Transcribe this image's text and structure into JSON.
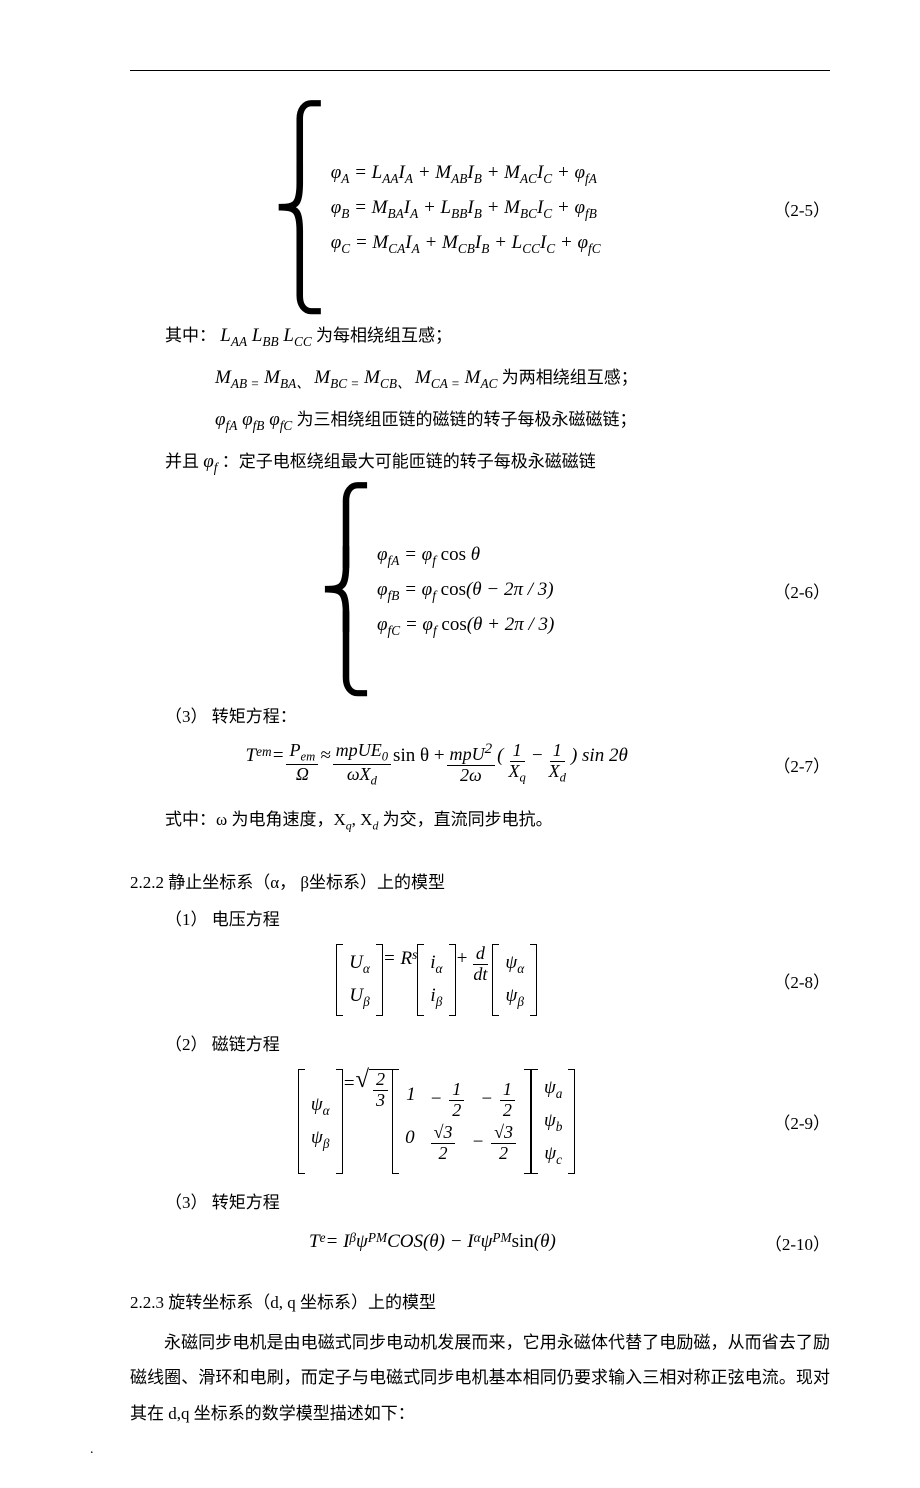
{
  "page": {
    "top_rule": true,
    "footer_mark": "."
  },
  "eq_2_5": {
    "num": "（2-5）",
    "lines": [
      "φ<sub>A</sub> = L<sub>AA</sub>I<sub>A</sub> + M<sub>AB</sub>I<sub>B</sub> + M<sub>AC</sub>I<sub>C</sub> + φ<sub>fA</sub>",
      "φ<sub>B</sub> = M<sub>BA</sub>I<sub>A</sub> + L<sub>BB</sub>I<sub>B</sub> + M<sub>BC</sub>I<sub>C</sub> + φ<sub>fB</sub>",
      "φ<sub>C</sub> = M<sub>CA</sub>I<sub>A</sub> + M<sub>CB</sub>I<sub>B</sub> + L<sub>CC</sub>I<sub>C</sub> + φ<sub>fC</sub>"
    ]
  },
  "after_2_5": {
    "line1_pre": "其中：",
    "line1_math": "L<sub>AA</sub> L<sub>BB</sub> L<sub>CC</sub>",
    "line1_post": "为每相绕组互感；",
    "line2_math": "M<sub>AB =</sub> M<sub>BA</sub><sub>、</sub> M<sub>BC =</sub> M<sub>CB</sub><sub>、</sub> M<sub>CA =</sub> M<sub>AC</sub>",
    "line2_post": "为两相绕组互感；",
    "line3_math": "φ<sub>fA</sub> φ<sub>fB</sub> φ<sub>fC</sub>",
    "line3_post": "为三相绕组匝链的磁链的转子每极永磁磁链；",
    "line4_pre": "并且",
    "line4_math": "φ<sub>f</sub>",
    "line4_post": "：定子电枢绕组最大可能匝链的转子每极永磁磁链"
  },
  "eq_2_6": {
    "num": "（2-6）",
    "lines": [
      "φ<sub>fA</sub> = φ<sub>f</sub> <span class=\"rm\">cos</span> θ",
      "φ<sub>fB</sub> = φ<sub>f</sub> <span class=\"rm\">cos</span>(θ − 2π / 3)",
      "φ<sub>fC</sub> = φ<sub>f</sub> <span class=\"rm\">cos</span>(θ + 2π / 3)"
    ]
  },
  "item_2_2_1_3": "（3） 转矩方程：",
  "eq_2_7": {
    "num": "（2-7）",
    "lhs": "T<sub>em</sub>",
    "body_parts": {
      "f1_num": "P<sub>em</sub>",
      "f1_den": "Ω",
      "f2_num": "mpUE<sub>0</sub>",
      "f2_den": "ωX<sub>d</sub>",
      "mid1": "sin θ +",
      "f3_num": "mpU<sup>2</sup>",
      "f3_den": "2ω",
      "paren_open": "(",
      "f4_num": "1",
      "f4_den": "X<sub>q</sub>",
      "minus": "−",
      "f5_num": "1",
      "f5_den": "X<sub>d</sub>",
      "paren_close": ") sin 2θ"
    }
  },
  "after_2_7": "式中：ω 为电角速度，X<sub>q</sub>, X<sub>d</sub> 为交，直流同步电抗。",
  "sec_2_2_2": "2.2.2 静止坐标系（α， β坐标系）上的模型",
  "item_2_2_2_1": "（1） 电压方程",
  "eq_2_8": {
    "num": "（2-8）",
    "lhs_rows": [
      "U<sub>α</sub>",
      "U<sub>β</sub>"
    ],
    "eq_txt": " = R<sub>s</sub>",
    "i_rows": [
      "i<sub>α</sub>",
      "i<sub>β</sub>"
    ],
    "plus": " + ",
    "deriv_num": "d",
    "deriv_den": "dt",
    "psi_rows": [
      "ψ<sub>α</sub>",
      "ψ<sub>β</sub>"
    ]
  },
  "item_2_2_2_2": "（2） 磁链方程",
  "eq_2_9": {
    "num": "（2-9）",
    "lhs_rows": [
      "ψ<sub>α</sub>",
      "ψ<sub>β</sub>"
    ],
    "sqrt_num": "2",
    "sqrt_den": "3",
    "matrix": {
      "r1": [
        "1",
        {
          "num": "1",
          "den": "2",
          "neg": true
        },
        {
          "num": "1",
          "den": "2",
          "neg": true
        }
      ],
      "r2": [
        "0",
        {
          "num": "√3",
          "den": "2",
          "neg": false
        },
        {
          "num": "√3",
          "den": "2",
          "neg": true
        }
      ]
    },
    "rhs_rows": [
      "ψ<sub>a</sub>",
      "ψ<sub>b</sub>",
      "ψ<sub>c</sub>"
    ]
  },
  "item_2_2_2_3": "（3） 转矩方程",
  "eq_2_10": {
    "num": "（2-10）",
    "body": "T<sub>e</sub> = I<sub>β</sub>ψ<sub>PM</sub> <span class=\"rm\" style=\"font-style:italic\">COS</span>(θ) − I<sub>α</sub>ψ<sub>PM</sub> <span class=\"rm\">sin</span>(θ)"
  },
  "sec_2_2_3": "2.2.3 旋转坐标系（d, q 坐标系）上的模型",
  "para_2_2_3": "永磁同步电机是由电磁式同步电动机发展而来，它用永磁体代替了电励磁，从而省去了励磁线圈、滑环和电刷，而定子与电磁式同步电机基本相同仍要求输入三相对称正弦电流。现对其在 d,q 坐标系的数学模型描述如下："
}
